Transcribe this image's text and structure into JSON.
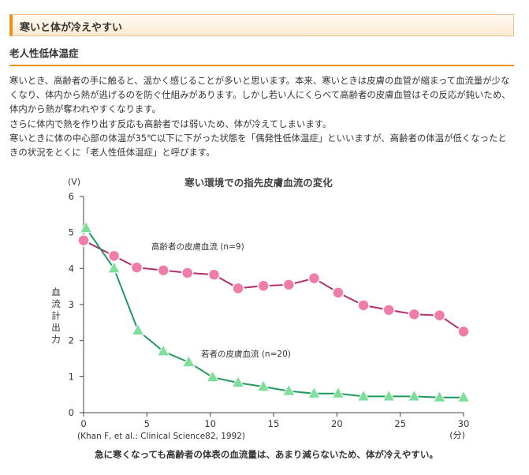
{
  "section": {
    "title": "寒いと体が冷えやすい"
  },
  "subsection": {
    "title": "老人性低体温症"
  },
  "paragraphs": [
    "寒いとき、高齢者の手に触ると、温かく感じることが多いと思います。本来、寒いときは皮膚の血管が縮まって血流量が少なくなり、体内から熱が逃げるのを防ぐ仕組みがあります。しかし若い人にくらべて高齢者の皮膚血管はその反応が鈍いため、体内から熱が奪われやすくなります。",
    "さらに体内で熱を作り出す反応も高齢者では弱いため、体が冷えてしまいます。",
    "寒いときに体の中心部の体温が35℃以下に下がった状態を「偶発性低体温症」といいますが、高齢者の体温が低くなったときの状況をとくに「老人性低体温症」と呼びます。"
  ],
  "chart_data": {
    "type": "line",
    "title": "寒い環境での指先皮膚血流の変化",
    "ylabel": "血流計出力",
    "yunit": "(V)",
    "xunit": "(分)",
    "xlim": [
      0,
      30
    ],
    "ylim": [
      0,
      6
    ],
    "xticks": [
      "0",
      "5",
      "10",
      "15",
      "20",
      "25",
      "30"
    ],
    "yticks": [
      "0",
      "1",
      "2",
      "3",
      "4",
      "5",
      "6"
    ],
    "grid": false,
    "series": [
      {
        "name": "高齢者の皮膚血流 (n=9)",
        "marker": "circle",
        "color": "#b0306a",
        "marker_color": "#f07ca8",
        "x": [
          0,
          2.4,
          4.2,
          6.3,
          8.2,
          10.3,
          12.2,
          14.2,
          16.2,
          18.2,
          20.1,
          22.1,
          24.1,
          26.1,
          28.1,
          30
        ],
        "y": [
          4.78,
          4.35,
          4.03,
          3.95,
          3.88,
          3.83,
          3.45,
          3.52,
          3.55,
          3.73,
          3.33,
          2.98,
          2.85,
          2.73,
          2.7,
          2.25
        ]
      },
      {
        "name": "若者の皮膚血流 (n=20)",
        "marker": "triangle",
        "color": "#1f9a5c",
        "marker_color": "#7fdf9a",
        "x": [
          0.2,
          2.4,
          4.3,
          6.3,
          8.3,
          10.2,
          12.2,
          14.2,
          16.2,
          18.2,
          20.1,
          22.1,
          24.1,
          26.1,
          28.1,
          30
        ],
        "y": [
          5.12,
          4.0,
          2.28,
          1.7,
          1.4,
          0.98,
          0.83,
          0.72,
          0.6,
          0.53,
          0.53,
          0.45,
          0.45,
          0.45,
          0.42,
          0.42
        ]
      }
    ],
    "source": "(Khan F, et al.: Clinical Science82, 1992)",
    "caption": "急に寒くなっても高齢者の体表の血流量は、あまり減らないため、体が冷えやすい。"
  }
}
